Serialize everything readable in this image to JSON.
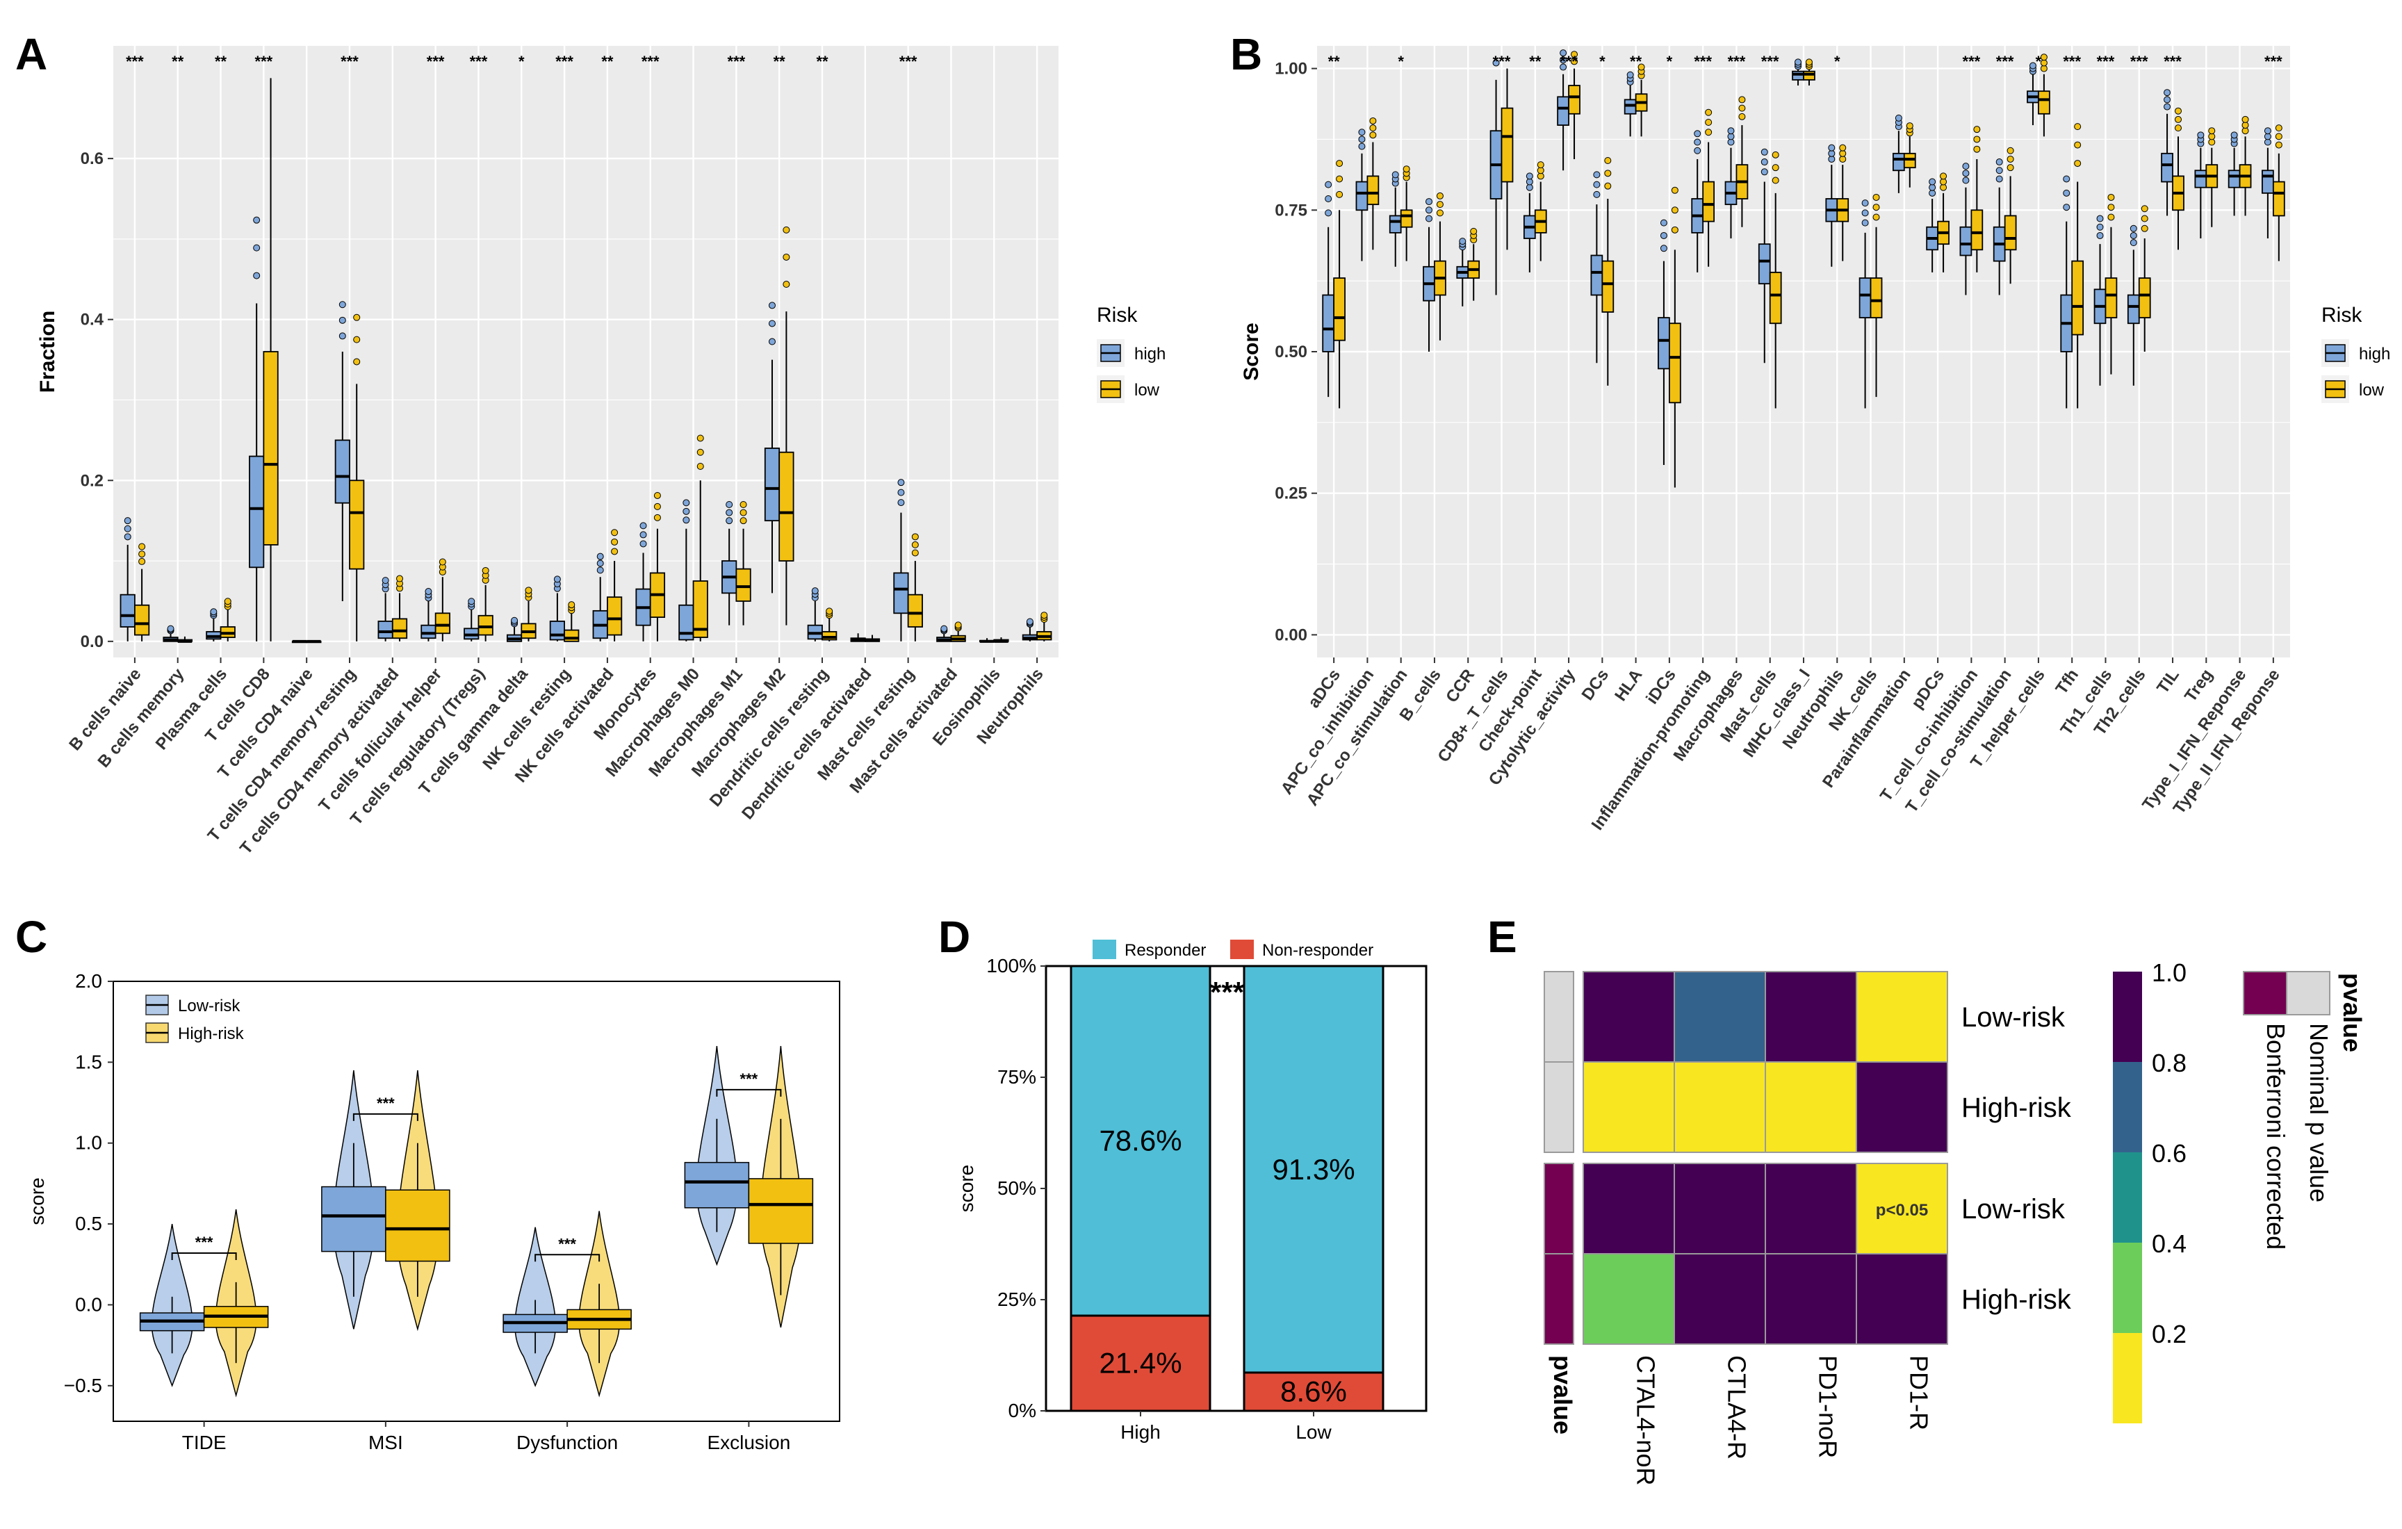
{
  "colors": {
    "high": "#7ea6d9",
    "low": "#f2c011",
    "responder": "#4fbed6",
    "nonresponder": "#e04b37",
    "viridis": [
      "#f8e621",
      "#6ccd5a",
      "#20928c",
      "#33638d",
      "#440154"
    ],
    "pvalue_nominal": "#d9d9d9",
    "pvalue_bonferroni": "#730050"
  },
  "chart_data": [
    {
      "panel": "A",
      "type": "box",
      "ylabel": "Fraction",
      "ylim": [
        -0.02,
        0.74
      ],
      "yticks": [
        "0.0",
        "0.2",
        "0.4",
        "0.6"
      ],
      "legend_title": "Risk",
      "legend": [
        "high",
        "low"
      ],
      "categories": [
        "B cells naive",
        "B cells memory",
        "Plasma cells",
        "T cells CD8",
        "T cells CD4 naive",
        "T cells CD4 memory resting",
        "T cells CD4 memory activated",
        "T cells follicular helper",
        "T cells regulatory (Tregs)",
        "T cells gamma delta",
        "NK cells resting",
        "NK cells activated",
        "Monocytes",
        "Macrophages M0",
        "Macrophages M1",
        "Macrophages M2",
        "Dendritic cells resting",
        "Dendritic cells activated",
        "Mast cells resting",
        "Mast cells activated",
        "Eosinophils",
        "Neutrophils"
      ],
      "significance": [
        "***",
        "**",
        "**",
        "***",
        "",
        "***",
        "",
        "***",
        "***",
        "*",
        "***",
        "**",
        "***",
        "",
        "***",
        "**",
        "**",
        "",
        "***",
        "",
        "",
        ""
      ],
      "high": [
        [
          0,
          0.018,
          0.032,
          0.058,
          0.12
        ],
        [
          0,
          0,
          0.002,
          0.005,
          0.012
        ],
        [
          0,
          0.003,
          0.006,
          0.012,
          0.03
        ],
        [
          0,
          0.092,
          0.165,
          0.23,
          0.42
        ],
        [
          0,
          0,
          0,
          0,
          0.001
        ],
        [
          0.05,
          0.172,
          0.205,
          0.25,
          0.36
        ],
        [
          0,
          0.004,
          0.012,
          0.025,
          0.06
        ],
        [
          0,
          0.004,
          0.01,
          0.02,
          0.05
        ],
        [
          0,
          0.003,
          0.008,
          0.016,
          0.04
        ],
        [
          0,
          0,
          0.003,
          0.008,
          0.02
        ],
        [
          0,
          0.002,
          0.008,
          0.025,
          0.06
        ],
        [
          0,
          0.004,
          0.02,
          0.038,
          0.08
        ],
        [
          0,
          0.02,
          0.042,
          0.065,
          0.11
        ],
        [
          0,
          0.002,
          0.01,
          0.045,
          0.14
        ],
        [
          0.02,
          0.06,
          0.08,
          0.1,
          0.14
        ],
        [
          0.06,
          0.15,
          0.19,
          0.24,
          0.35
        ],
        [
          0,
          0.003,
          0.01,
          0.02,
          0.05
        ],
        [
          0,
          0,
          0.002,
          0.004,
          0.01
        ],
        [
          0,
          0.035,
          0.065,
          0.085,
          0.16
        ],
        [
          0,
          0,
          0.002,
          0.005,
          0.012
        ],
        [
          0,
          0,
          0,
          0.001,
          0.004
        ],
        [
          0,
          0.002,
          0.004,
          0.008,
          0.02
        ]
      ],
      "low": [
        [
          0,
          0.008,
          0.022,
          0.045,
          0.09
        ],
        [
          0,
          0,
          0,
          0.002,
          0.006
        ],
        [
          0,
          0.005,
          0.01,
          0.018,
          0.04
        ],
        [
          0,
          0.12,
          0.22,
          0.36,
          0.7
        ],
        [
          0,
          0,
          0,
          0,
          0.001
        ],
        [
          0,
          0.09,
          0.16,
          0.2,
          0.32
        ],
        [
          0,
          0.004,
          0.013,
          0.028,
          0.06
        ],
        [
          0,
          0.01,
          0.02,
          0.035,
          0.08
        ],
        [
          0,
          0.008,
          0.018,
          0.032,
          0.07
        ],
        [
          0,
          0.004,
          0.012,
          0.022,
          0.05
        ],
        [
          0,
          0,
          0.004,
          0.014,
          0.035
        ],
        [
          0,
          0.008,
          0.028,
          0.055,
          0.1
        ],
        [
          0,
          0.03,
          0.058,
          0.085,
          0.14
        ],
        [
          0,
          0.005,
          0.015,
          0.075,
          0.2
        ],
        [
          0.02,
          0.05,
          0.068,
          0.09,
          0.14
        ],
        [
          0.02,
          0.1,
          0.16,
          0.235,
          0.41
        ],
        [
          0,
          0.002,
          0.005,
          0.012,
          0.03
        ],
        [
          0,
          0,
          0.001,
          0.003,
          0.008
        ],
        [
          0,
          0.018,
          0.035,
          0.058,
          0.1
        ],
        [
          0,
          0,
          0.003,
          0.007,
          0.015
        ],
        [
          0,
          0,
          0,
          0.002,
          0.005
        ],
        [
          0,
          0.002,
          0.006,
          0.012,
          0.025
        ]
      ]
    },
    {
      "panel": "B",
      "type": "box",
      "ylabel": "Score",
      "ylim": [
        -0.04,
        1.04
      ],
      "yticks": [
        "0.00",
        "0.25",
        "0.50",
        "0.75",
        "1.00"
      ],
      "legend_title": "Risk",
      "legend": [
        "high",
        "low"
      ],
      "categories": [
        "aDCs",
        "APC_co_inhibition",
        "APC_co_stimulation",
        "B_cells",
        "CCR",
        "CD8+_T_cells",
        "Check-point",
        "Cytolytic_activity",
        "DCs",
        "HLA",
        "iDCs",
        "Inflammation-promoting",
        "Macrophages",
        "Mast_cells",
        "MHC_class_I",
        "Neutrophils",
        "NK_cells",
        "Parainflammation",
        "pDCs",
        "T_cell_co-inhibition",
        "T_cell_co-stimulation",
        "T_helper_cells",
        "Tfh",
        "Th1_cells",
        "Th2_cells",
        "TIL",
        "Treg",
        "Type_I_IFN_Reponse",
        "Type_II_IFN_Reponse"
      ],
      "significance": [
        "**",
        "",
        "*",
        "",
        "",
        "***",
        "**",
        "***",
        "*",
        "**",
        "*",
        "***",
        "***",
        "***",
        "",
        "*",
        "",
        "",
        "",
        "***",
        "***",
        "*",
        "***",
        "***",
        "***",
        "***",
        "",
        "",
        "***"
      ],
      "high": [
        [
          0.42,
          0.5,
          0.54,
          0.6,
          0.72
        ],
        [
          0.66,
          0.75,
          0.78,
          0.8,
          0.85
        ],
        [
          0.65,
          0.71,
          0.73,
          0.74,
          0.79
        ],
        [
          0.5,
          0.59,
          0.62,
          0.65,
          0.72
        ],
        [
          0.58,
          0.63,
          0.64,
          0.65,
          0.68
        ],
        [
          0.6,
          0.77,
          0.83,
          0.89,
          0.98
        ],
        [
          0.64,
          0.7,
          0.72,
          0.74,
          0.78
        ],
        [
          0.82,
          0.9,
          0.93,
          0.95,
          0.99
        ],
        [
          0.48,
          0.6,
          0.64,
          0.67,
          0.76
        ],
        [
          0.88,
          0.92,
          0.935,
          0.945,
          0.97
        ],
        [
          0.3,
          0.47,
          0.52,
          0.56,
          0.66
        ],
        [
          0.64,
          0.71,
          0.74,
          0.77,
          0.84
        ],
        [
          0.7,
          0.76,
          0.78,
          0.8,
          0.86
        ],
        [
          0.48,
          0.62,
          0.66,
          0.69,
          0.8
        ],
        [
          0.97,
          0.98,
          0.99,
          0.995,
          1.0
        ],
        [
          0.65,
          0.73,
          0.75,
          0.77,
          0.83
        ],
        [
          0.4,
          0.56,
          0.6,
          0.63,
          0.71
        ],
        [
          0.78,
          0.82,
          0.84,
          0.85,
          0.89
        ],
        [
          0.64,
          0.68,
          0.7,
          0.72,
          0.77
        ],
        [
          0.6,
          0.67,
          0.69,
          0.72,
          0.79
        ],
        [
          0.6,
          0.66,
          0.69,
          0.72,
          0.79
        ],
        [
          0.9,
          0.94,
          0.95,
          0.96,
          0.99
        ],
        [
          0.4,
          0.5,
          0.55,
          0.6,
          0.73
        ],
        [
          0.44,
          0.55,
          0.58,
          0.61,
          0.69
        ],
        [
          0.44,
          0.55,
          0.58,
          0.6,
          0.68
        ],
        [
          0.74,
          0.8,
          0.83,
          0.85,
          0.92
        ],
        [
          0.7,
          0.79,
          0.81,
          0.82,
          0.86
        ],
        [
          0.74,
          0.79,
          0.81,
          0.82,
          0.86
        ],
        [
          0.7,
          0.78,
          0.81,
          0.82,
          0.86
        ]
      ],
      "low": [
        [
          0.4,
          0.52,
          0.56,
          0.63,
          0.75
        ],
        [
          0.68,
          0.76,
          0.78,
          0.81,
          0.87
        ],
        [
          0.66,
          0.72,
          0.74,
          0.75,
          0.8
        ],
        [
          0.52,
          0.6,
          0.63,
          0.66,
          0.73
        ],
        [
          0.59,
          0.63,
          0.645,
          0.66,
          0.69
        ],
        [
          0.68,
          0.8,
          0.88,
          0.93,
          1.0
        ],
        [
          0.66,
          0.71,
          0.73,
          0.75,
          0.8
        ],
        [
          0.84,
          0.92,
          0.95,
          0.97,
          1.0
        ],
        [
          0.44,
          0.57,
          0.62,
          0.66,
          0.77
        ],
        [
          0.88,
          0.925,
          0.94,
          0.955,
          0.98
        ],
        [
          0.26,
          0.41,
          0.49,
          0.55,
          0.68
        ],
        [
          0.65,
          0.73,
          0.76,
          0.8,
          0.87
        ],
        [
          0.72,
          0.77,
          0.8,
          0.83,
          0.9
        ],
        [
          0.4,
          0.55,
          0.6,
          0.64,
          0.78
        ],
        [
          0.97,
          0.98,
          0.99,
          0.995,
          1.0
        ],
        [
          0.66,
          0.73,
          0.75,
          0.77,
          0.83
        ],
        [
          0.42,
          0.56,
          0.59,
          0.63,
          0.72
        ],
        [
          0.79,
          0.825,
          0.84,
          0.85,
          0.88
        ],
        [
          0.64,
          0.69,
          0.71,
          0.73,
          0.78
        ],
        [
          0.64,
          0.68,
          0.71,
          0.75,
          0.84
        ],
        [
          0.62,
          0.68,
          0.7,
          0.74,
          0.81
        ],
        [
          0.88,
          0.92,
          0.945,
          0.96,
          0.99
        ],
        [
          0.4,
          0.53,
          0.58,
          0.66,
          0.8
        ],
        [
          0.46,
          0.56,
          0.6,
          0.63,
          0.72
        ],
        [
          0.5,
          0.56,
          0.6,
          0.63,
          0.7
        ],
        [
          0.68,
          0.75,
          0.78,
          0.81,
          0.88
        ],
        [
          0.72,
          0.79,
          0.81,
          0.83,
          0.86
        ],
        [
          0.74,
          0.79,
          0.81,
          0.83,
          0.88
        ],
        [
          0.66,
          0.74,
          0.78,
          0.8,
          0.85
        ]
      ]
    },
    {
      "panel": "C",
      "type": "violin-box",
      "ylabel": "score",
      "ylim": [
        -0.72,
        2.0
      ],
      "yticks": [
        "−0.5",
        "0.0",
        "0.5",
        "1.0",
        "1.5",
        "2.0"
      ],
      "legend": [
        "Low-risk",
        "High-risk"
      ],
      "categories": [
        "TIDE",
        "MSI",
        "Dysfunction",
        "Exclusion"
      ],
      "significance": [
        "***",
        "***",
        "***",
        "***"
      ],
      "low_risk": [
        [
          -0.3,
          -0.16,
          -0.1,
          -0.05,
          0.05
        ],
        [
          0.05,
          0.33,
          0.55,
          0.73,
          1.0
        ],
        [
          -0.3,
          -0.17,
          -0.11,
          -0.06,
          0.03
        ],
        [
          0.45,
          0.6,
          0.76,
          0.88,
          1.15
        ]
      ],
      "high_risk": [
        [
          -0.36,
          -0.14,
          -0.07,
          -0.01,
          0.14
        ],
        [
          0.05,
          0.27,
          0.47,
          0.71,
          1.0
        ],
        [
          -0.36,
          -0.15,
          -0.09,
          -0.03,
          0.13
        ],
        [
          0.06,
          0.38,
          0.62,
          0.78,
          1.15
        ]
      ]
    },
    {
      "panel": "D",
      "type": "stacked-bar",
      "ylabel": "score",
      "yticks": [
        "0%",
        "25%",
        "50%",
        "75%",
        "100%"
      ],
      "categories": [
        "High",
        "Low"
      ],
      "legend": [
        "Responder",
        "Non-responder"
      ],
      "responder": [
        78.6,
        91.3
      ],
      "nonresponder": [
        21.4,
        8.6
      ],
      "responder_labels": [
        "78.6%",
        "91.3%"
      ],
      "nonresponder_labels": [
        "21.4%",
        "8.6%"
      ],
      "significance": "***"
    },
    {
      "panel": "E",
      "type": "heatmap",
      "rows": [
        "Low-risk",
        "High-risk",
        "Low-risk",
        "High-risk"
      ],
      "row_groups": [
        "Nominal p value",
        "Nominal p value",
        "Bonferroni corrected",
        "Bonferroni corrected"
      ],
      "columns": [
        "CTAL4-noR",
        "CTLA4-R",
        "PD1-noR",
        "PD1-R"
      ],
      "values": [
        [
          1.0,
          0.7,
          1.0,
          0.03
        ],
        [
          0.03,
          0.03,
          0.03,
          1.0
        ],
        [
          1.0,
          1.0,
          1.0,
          0.03
        ],
        [
          0.35,
          1.0,
          1.0,
          1.0
        ]
      ],
      "cell_label": {
        "row": 2,
        "col": 3,
        "text": "p<0.05"
      },
      "colorbar_ticks": [
        "1.0",
        "0.8",
        "0.6",
        "0.4",
        "0.2"
      ],
      "pvalue_legend_title": "pvalue",
      "pvalue_legend": [
        "Nominal p value",
        "Bonferroni corrected"
      ],
      "annotation_label": "pvalue"
    }
  ],
  "panels": {
    "A": "A",
    "B": "B",
    "C": "C",
    "D": "D",
    "E": "E"
  }
}
